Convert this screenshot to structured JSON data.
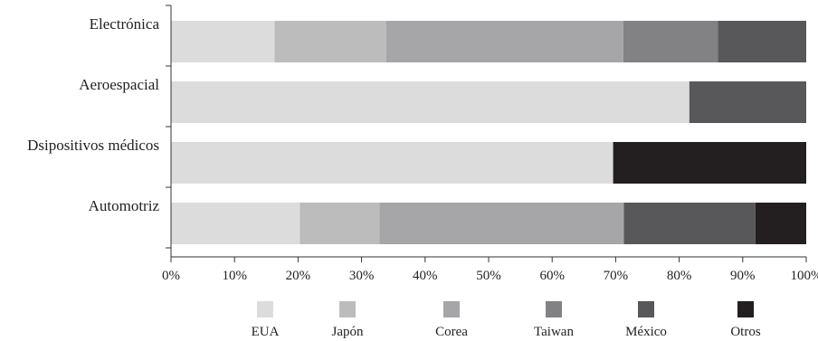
{
  "chart_data": {
    "type": "bar",
    "orientation": "horizontal",
    "stacked": true,
    "categories": [
      "Electrónica",
      "Aeroespacial",
      "Dsipositivos médicos",
      "Automotriz"
    ],
    "series": [
      {
        "name": "EUA",
        "color": "#dcdcdd",
        "values": [
          16.3,
          81.6,
          69.6,
          20.3
        ]
      },
      {
        "name": "Japón",
        "color": "#bcbcbd",
        "values": [
          17.6,
          0,
          0,
          12.5
        ]
      },
      {
        "name": "Corea",
        "color": "#a6a6a8",
        "values": [
          37.3,
          0,
          0,
          38.5
        ]
      },
      {
        "name": "Taiwan",
        "color": "#828284",
        "values": [
          14.9,
          0,
          0,
          0
        ]
      },
      {
        "name": "México",
        "color": "#58585a",
        "values": [
          13.9,
          18.4,
          0,
          20.7
        ]
      },
      {
        "name": "Otros",
        "color": "#231f20",
        "values": [
          0,
          0,
          30.4,
          8.0
        ]
      }
    ],
    "xticks": [
      "0%",
      "10%",
      "20%",
      "30%",
      "40%",
      "50%",
      "60%",
      "70%",
      "80%",
      "90%",
      "100%"
    ],
    "xlim": [
      0,
      100
    ],
    "grid": false,
    "legend_position": "bottom",
    "title": "",
    "xlabel": "",
    "ylabel": ""
  }
}
